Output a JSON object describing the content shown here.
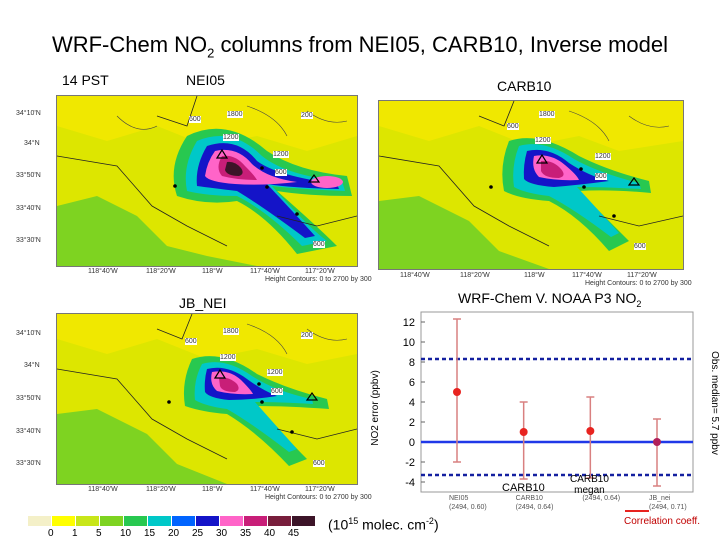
{
  "title_main": "WRF-Chem NO",
  "title_sub": "2",
  "title_rest": " columns from NEI05, CARB10, Inverse model",
  "labels": {
    "time": "14 PST",
    "nei05": "NEI05",
    "carb10": "CARB10",
    "jb_nei": "JB_NEI"
  },
  "map_contours": {
    "nei05": [
      "600",
      "1800",
      "200",
      "1200",
      "1200",
      "600",
      "600"
    ],
    "carb10": [
      "600",
      "1800",
      "1200",
      "1200",
      "600",
      "600"
    ],
    "jb_nei": [
      "600",
      "1800",
      "1200",
      "1200",
      "600",
      "600",
      "200"
    ]
  },
  "lat_ticks": [
    "34°10'N",
    "34°N",
    "33°50'N",
    "33°40'N",
    "33°30'N"
  ],
  "lon_ticks": [
    "118°40'W",
    "118°20'W",
    "118°W",
    "117°40'W",
    "117°20'W"
  ],
  "height_note": "Height Contours: 0 to 2700 by 300",
  "colorbar": {
    "ticks": [
      "0",
      "1",
      "5",
      "10",
      "15",
      "20",
      "25",
      "30",
      "35",
      "40",
      "45"
    ],
    "colors": [
      "#f4f0c8",
      "#ffff00",
      "#c8e619",
      "#7ed321",
      "#28c850",
      "#00c8c8",
      "#0064ff",
      "#1414c8",
      "#ff64c8",
      "#c81e78",
      "#781e3c",
      "#3c1428"
    ],
    "unit_prefix": "(10",
    "unit_exp": "15",
    "unit_mid": " molec. cm",
    "unit_exp2": "-2",
    "unit_suffix": ")"
  },
  "error_chart": {
    "title_main": "WRF-Chem V. NOAA P3 NO",
    "title_sub": "2",
    "ylabel": "NO2 error (ppbv)",
    "right_label": "Obs. median= 5.7 ppbv",
    "annotations": {
      "carb10": "CARB10",
      "carb10_megan": "CARB10\nmegan",
      "corr": "Correlation coeff."
    }
  },
  "chart_data": {
    "type": "scatter",
    "title": "WRF-Chem V. NOAA P3 NO2",
    "ylabel": "NO2 error (ppbv)",
    "ylim": [
      -5,
      13
    ],
    "yticks": [
      -4,
      -2,
      0,
      2,
      4,
      6,
      8,
      10,
      12
    ],
    "categories": [
      "NEI05",
      "CARB10",
      "CARB10 megan",
      "JB_nei"
    ],
    "category_labels": [
      "NEI05\n(2494, 0.60)",
      "CARB10\n(2494, 0.64)",
      "(2494, 0.64)",
      "JB_nei\n(2494, 0.71)"
    ],
    "values": [
      5.0,
      1.0,
      1.1,
      0.0
    ],
    "error_low": [
      -2.0,
      -3.7,
      -3.6,
      -4.4
    ],
    "error_high": [
      12.3,
      4.0,
      4.5,
      2.3
    ],
    "reference_lines": [
      8.3,
      -3.3
    ],
    "zero_line": 0,
    "colors": {
      "point": "#e8231f",
      "errorbar": "#d98080",
      "zero": "#2038e8",
      "ref": "#1420a0"
    }
  }
}
